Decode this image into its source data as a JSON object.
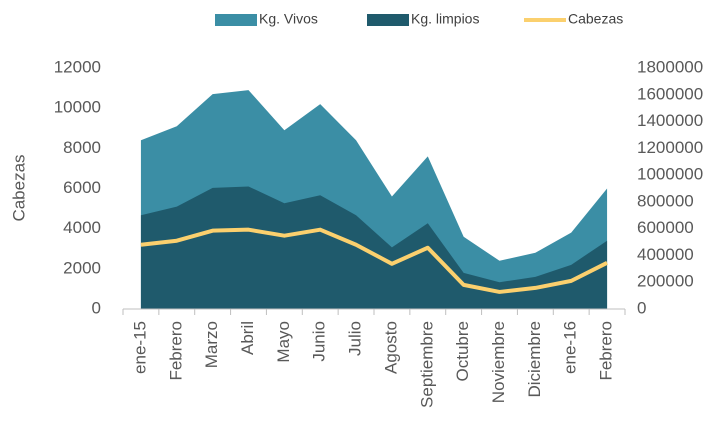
{
  "chart_data": {
    "type": "area-line",
    "ylabel": "Cabezas",
    "categories": [
      "ene-15",
      "Febrero",
      "Marzo",
      "Abril",
      "Mayo",
      "Junio",
      "Julio",
      "Agosto",
      "Septiembre",
      "Octubre",
      "Noviembre",
      "Diciembre",
      "ene-16",
      "Febrero"
    ],
    "series": [
      {
        "name": "Kg. Vivos",
        "kind": "area",
        "axis": "y2",
        "color": "#3b8ea5",
        "values": [
          1260000,
          1365000,
          1605000,
          1635000,
          1335000,
          1530000,
          1260000,
          840000,
          1140000,
          540000,
          360000,
          420000,
          570000,
          900000
        ]
      },
      {
        "name": "Kg. limpios",
        "kind": "area",
        "axis": "y2",
        "color": "#1f5a6c",
        "values": [
          700000,
          765000,
          905000,
          915000,
          790000,
          850000,
          700000,
          460000,
          640000,
          270000,
          200000,
          240000,
          330000,
          510000
        ]
      },
      {
        "name": "Cabezas",
        "kind": "line",
        "axis": "y",
        "color": "#fbd06e",
        "values": [
          3200,
          3400,
          3900,
          3950,
          3650,
          3950,
          3200,
          2250,
          3050,
          1200,
          850,
          1050,
          1400,
          2300
        ]
      }
    ],
    "ylim": [
      0,
      12000
    ],
    "yticks": [
      0,
      2000,
      4000,
      6000,
      8000,
      10000,
      12000
    ],
    "y2lim": [
      0,
      1800000
    ],
    "y2ticks": [
      0,
      200000,
      400000,
      600000,
      800000,
      1000000,
      1200000,
      1400000,
      1600000,
      1800000
    ],
    "legend": "top"
  }
}
